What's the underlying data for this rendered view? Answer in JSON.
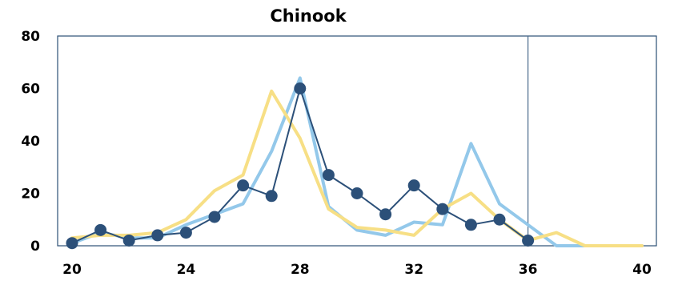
{
  "chart_data": {
    "type": "line",
    "title": "Chinook",
    "xlabel": "",
    "ylabel": "",
    "xlim": [
      20,
      40
    ],
    "ylim": [
      0,
      80
    ],
    "x_ticks": [
      "20",
      "24",
      "28",
      "32",
      "36",
      "40"
    ],
    "y_ticks": [
      "0",
      "20",
      "40",
      "60",
      "80"
    ],
    "grid": false,
    "vertical_marker_x": 36,
    "series": [
      {
        "color": "#93c8ea",
        "marker": "none",
        "points": [
          [
            20,
            1
          ],
          [
            21,
            5
          ],
          [
            22,
            3
          ],
          [
            23,
            3
          ],
          [
            24,
            8
          ],
          [
            25,
            12
          ],
          [
            26,
            16
          ],
          [
            27,
            36
          ],
          [
            28,
            64
          ],
          [
            29,
            15
          ],
          [
            30,
            6
          ],
          [
            31,
            4
          ],
          [
            32,
            9
          ],
          [
            33,
            8
          ],
          [
            34,
            39
          ],
          [
            35,
            16
          ],
          [
            36,
            8
          ],
          [
            37,
            0
          ],
          [
            38,
            0
          ],
          [
            39,
            0
          ],
          [
            40,
            0
          ]
        ]
      },
      {
        "color": "#f7df85",
        "marker": "none",
        "points": [
          [
            20,
            3
          ],
          [
            21,
            4
          ],
          [
            22,
            4
          ],
          [
            23,
            5
          ],
          [
            24,
            10
          ],
          [
            25,
            21
          ],
          [
            26,
            27
          ],
          [
            27,
            59
          ],
          [
            28,
            41
          ],
          [
            29,
            14
          ],
          [
            30,
            7
          ],
          [
            31,
            6
          ],
          [
            32,
            4
          ],
          [
            33,
            14
          ],
          [
            34,
            20
          ],
          [
            35,
            10
          ],
          [
            36,
            2
          ],
          [
            37,
            5
          ],
          [
            38,
            0
          ],
          [
            39,
            0
          ],
          [
            40,
            0
          ]
        ]
      },
      {
        "color": "#2c5079",
        "marker": "circle",
        "points": [
          [
            20,
            1
          ],
          [
            21,
            6
          ],
          [
            22,
            2
          ],
          [
            23,
            4
          ],
          [
            24,
            5
          ],
          [
            25,
            11
          ],
          [
            26,
            23
          ],
          [
            27,
            19
          ],
          [
            28,
            60
          ],
          [
            29,
            27
          ],
          [
            30,
            20
          ],
          [
            31,
            12
          ],
          [
            32,
            23
          ],
          [
            33,
            14
          ],
          [
            34,
            8
          ],
          [
            35,
            10
          ],
          [
            36,
            2
          ]
        ]
      }
    ]
  }
}
